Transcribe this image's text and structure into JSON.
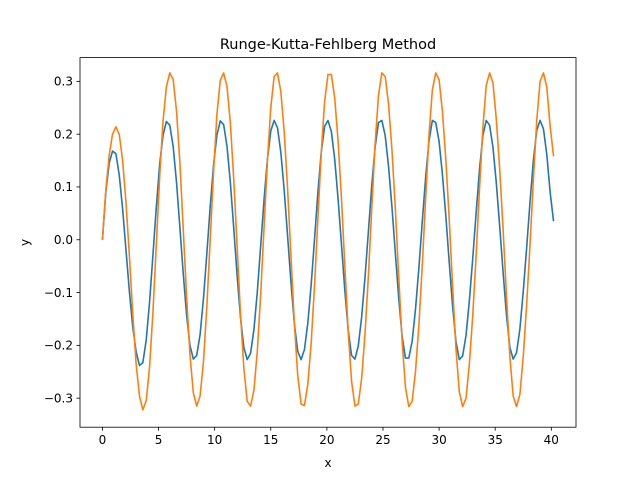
{
  "chart_data": {
    "type": "line",
    "title": "Runge-Kutta-Fehlberg Method",
    "xlabel": "x",
    "ylabel": "y",
    "xlim": [
      -2.0,
      42.2
    ],
    "ylim": [
      -0.355,
      0.345
    ],
    "grid": false,
    "legend": "none",
    "xticks": [
      0,
      5,
      10,
      15,
      20,
      25,
      30,
      35,
      40
    ],
    "xtick_labels": [
      "0",
      "5",
      "10",
      "15",
      "20",
      "25",
      "30",
      "35",
      "40"
    ],
    "yticks": [
      -0.3,
      -0.2,
      -0.1,
      0.0,
      0.1,
      0.2,
      0.3
    ],
    "ytick_labels": [
      "−0.3",
      "−0.2",
      "−0.1",
      "0.0",
      "0.1",
      "0.2",
      "0.3"
    ],
    "series": [
      {
        "color": "#1f77b4",
        "x": [
          0,
          0.3,
          0.6,
          0.9,
          1.2,
          1.5,
          1.8,
          2.1,
          2.4,
          2.7,
          3.0,
          3.3,
          3.6,
          3.9,
          4.2,
          4.5,
          4.8,
          5.1,
          5.4,
          5.7,
          6.0,
          6.3,
          6.6,
          6.9,
          7.2,
          7.5,
          7.8,
          8.1,
          8.4,
          8.7,
          9.0,
          9.3,
          9.6,
          9.9,
          10.2,
          10.5,
          10.8,
          11.1,
          11.4,
          11.7,
          12.0,
          12.3,
          12.6,
          12.9,
          13.2,
          13.5,
          13.8,
          14.1,
          14.4,
          14.7,
          15.0,
          15.3,
          15.6,
          15.9,
          16.2,
          16.5,
          16.8,
          17.1,
          17.4,
          17.7,
          18.0,
          18.3,
          18.6,
          18.9,
          19.2,
          19.5,
          19.8,
          20.1,
          20.4,
          20.7,
          21.0,
          21.3,
          21.6,
          21.9,
          22.2,
          22.5,
          22.8,
          23.1,
          23.4,
          23.7,
          24.0,
          24.3,
          24.6,
          24.9,
          25.2,
          25.5,
          25.8,
          26.1,
          26.4,
          26.7,
          27.0,
          27.3,
          27.6,
          27.9,
          28.2,
          28.5,
          28.8,
          29.1,
          29.4,
          29.7,
          30.0,
          30.3,
          30.6,
          30.9,
          31.2,
          31.5,
          31.8,
          32.1,
          32.4,
          32.7,
          33.0,
          33.3,
          33.6,
          33.9,
          34.2,
          34.5,
          34.8,
          35.1,
          35.4,
          35.7,
          36.0,
          36.3,
          36.6,
          36.9,
          37.2,
          37.5,
          37.8,
          38.1,
          38.4,
          38.7,
          39.0,
          39.3,
          39.6,
          39.9,
          40.2
        ],
        "y": [
          0.0,
          0.09,
          0.145,
          0.168,
          0.163,
          0.122,
          0.058,
          -0.02,
          -0.098,
          -0.165,
          -0.212,
          -0.238,
          -0.233,
          -0.19,
          -0.118,
          -0.029,
          0.062,
          0.143,
          0.198,
          0.224,
          0.217,
          0.177,
          0.109,
          0.024,
          -0.064,
          -0.143,
          -0.2,
          -0.226,
          -0.219,
          -0.18,
          -0.112,
          -0.027,
          0.062,
          0.141,
          0.198,
          0.225,
          0.218,
          0.177,
          0.108,
          0.022,
          -0.067,
          -0.147,
          -0.204,
          -0.227,
          -0.215,
          -0.17,
          -0.099,
          -0.012,
          0.076,
          0.152,
          0.206,
          0.226,
          0.212,
          0.165,
          0.093,
          0.007,
          -0.081,
          -0.158,
          -0.211,
          -0.227,
          -0.208,
          -0.158,
          -0.085,
          0.001,
          0.09,
          0.166,
          0.215,
          0.226,
          0.205,
          0.152,
          0.077,
          -0.009,
          -0.096,
          -0.171,
          -0.219,
          -0.226,
          -0.201,
          -0.146,
          -0.071,
          0.016,
          0.103,
          0.176,
          0.222,
          0.226,
          0.197,
          0.138,
          0.062,
          -0.025,
          -0.11,
          -0.182,
          -0.224,
          -0.224,
          -0.192,
          -0.131,
          -0.053,
          0.034,
          0.118,
          0.187,
          0.226,
          0.222,
          0.186,
          0.123,
          0.045,
          -0.042,
          -0.125,
          -0.192,
          -0.227,
          -0.22,
          -0.181,
          -0.115,
          -0.035,
          0.051,
          0.133,
          0.197,
          0.226,
          0.217,
          0.175,
          0.107,
          0.026,
          -0.061,
          -0.142,
          -0.203,
          -0.226,
          -0.214,
          -0.169,
          -0.098,
          -0.016,
          0.071,
          0.15,
          0.207,
          0.226,
          0.21,
          0.161,
          0.089,
          0.035
        ]
      },
      {
        "color": "#ff7f0e",
        "x": [
          0,
          0.3,
          0.6,
          0.9,
          1.2,
          1.5,
          1.8,
          2.1,
          2.4,
          2.7,
          3.0,
          3.3,
          3.6,
          3.9,
          4.2,
          4.5,
          4.8,
          5.1,
          5.4,
          5.7,
          6.0,
          6.3,
          6.6,
          6.9,
          7.2,
          7.5,
          7.8,
          8.1,
          8.4,
          8.7,
          9.0,
          9.3,
          9.6,
          9.9,
          10.2,
          10.5,
          10.8,
          11.1,
          11.4,
          11.7,
          12.0,
          12.3,
          12.6,
          12.9,
          13.2,
          13.5,
          13.8,
          14.1,
          14.4,
          14.7,
          15.0,
          15.3,
          15.6,
          15.9,
          16.2,
          16.5,
          16.8,
          17.1,
          17.4,
          17.7,
          18.0,
          18.3,
          18.6,
          18.9,
          19.2,
          19.5,
          19.8,
          20.1,
          20.4,
          20.7,
          21.0,
          21.3,
          21.6,
          21.9,
          22.2,
          22.5,
          22.8,
          23.1,
          23.4,
          23.7,
          24.0,
          24.3,
          24.6,
          24.9,
          25.2,
          25.5,
          25.8,
          26.1,
          26.4,
          26.7,
          27.0,
          27.3,
          27.6,
          27.9,
          28.2,
          28.5,
          28.8,
          29.1,
          29.4,
          29.7,
          30.0,
          30.3,
          30.6,
          30.9,
          31.2,
          31.5,
          31.8,
          32.1,
          32.4,
          32.7,
          33.0,
          33.3,
          33.6,
          33.9,
          34.2,
          34.5,
          34.8,
          35.1,
          35.4,
          35.7,
          36.0,
          36.3,
          36.6,
          36.9,
          37.2,
          37.5,
          37.8,
          38.1,
          38.4,
          38.7,
          39.0,
          39.3,
          39.6,
          39.9,
          40.2
        ],
        "y": [
          0.0,
          0.094,
          0.16,
          0.2,
          0.214,
          0.199,
          0.15,
          0.07,
          -0.03,
          -0.14,
          -0.235,
          -0.296,
          -0.322,
          -0.305,
          -0.241,
          -0.137,
          -0.009,
          0.12,
          0.225,
          0.29,
          0.316,
          0.304,
          0.244,
          0.147,
          0.02,
          -0.108,
          -0.218,
          -0.29,
          -0.315,
          -0.296,
          -0.232,
          -0.128,
          -0.001,
          0.128,
          0.237,
          0.302,
          0.316,
          0.29,
          0.221,
          0.115,
          -0.012,
          -0.14,
          -0.243,
          -0.306,
          -0.315,
          -0.285,
          -0.211,
          -0.104,
          0.023,
          0.148,
          0.25,
          0.309,
          0.316,
          0.28,
          0.204,
          0.096,
          -0.032,
          -0.157,
          -0.256,
          -0.311,
          -0.314,
          -0.274,
          -0.196,
          -0.087,
          0.041,
          0.165,
          0.262,
          0.313,
          0.313,
          0.268,
          0.187,
          0.078,
          -0.05,
          -0.173,
          -0.268,
          -0.315,
          -0.311,
          -0.262,
          -0.178,
          -0.068,
          0.06,
          0.182,
          0.274,
          0.316,
          0.309,
          0.256,
          0.17,
          0.059,
          -0.069,
          -0.19,
          -0.279,
          -0.316,
          -0.306,
          -0.249,
          -0.161,
          -0.049,
          0.078,
          0.198,
          0.284,
          0.316,
          0.303,
          0.242,
          0.152,
          0.04,
          -0.087,
          -0.205,
          -0.288,
          -0.316,
          -0.3,
          -0.235,
          -0.143,
          -0.03,
          0.096,
          0.212,
          0.292,
          0.316,
          0.297,
          0.228,
          0.134,
          0.021,
          -0.105,
          -0.219,
          -0.296,
          -0.316,
          -0.293,
          -0.221,
          -0.124,
          -0.011,
          0.113,
          0.225,
          0.3,
          0.316,
          0.289,
          0.214,
          0.158
        ]
      }
    ]
  }
}
